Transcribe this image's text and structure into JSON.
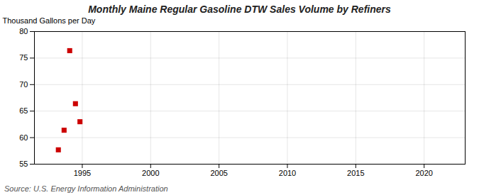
{
  "chart_data": {
    "type": "scatter",
    "title": "Monthly Maine Regular Gasoline DTW Sales Volume by Refiners",
    "ylabel": "Thousand Gallons per Day",
    "source": "Source: U.S. Energy Information Administration",
    "x": [
      1993.25,
      1993.67,
      1994.08,
      1994.5,
      1994.83
    ],
    "values": [
      57.7,
      61.4,
      76.4,
      66.4,
      63.0
    ],
    "color": "#cc0000",
    "marker": "square",
    "xlim": [
      1991.5,
      2023
    ],
    "ylim": [
      55,
      80
    ],
    "xticks": [
      1995,
      2000,
      2005,
      2010,
      2015,
      2020
    ],
    "yticks": [
      55,
      60,
      65,
      70,
      75,
      80
    ],
    "grid": true
  }
}
